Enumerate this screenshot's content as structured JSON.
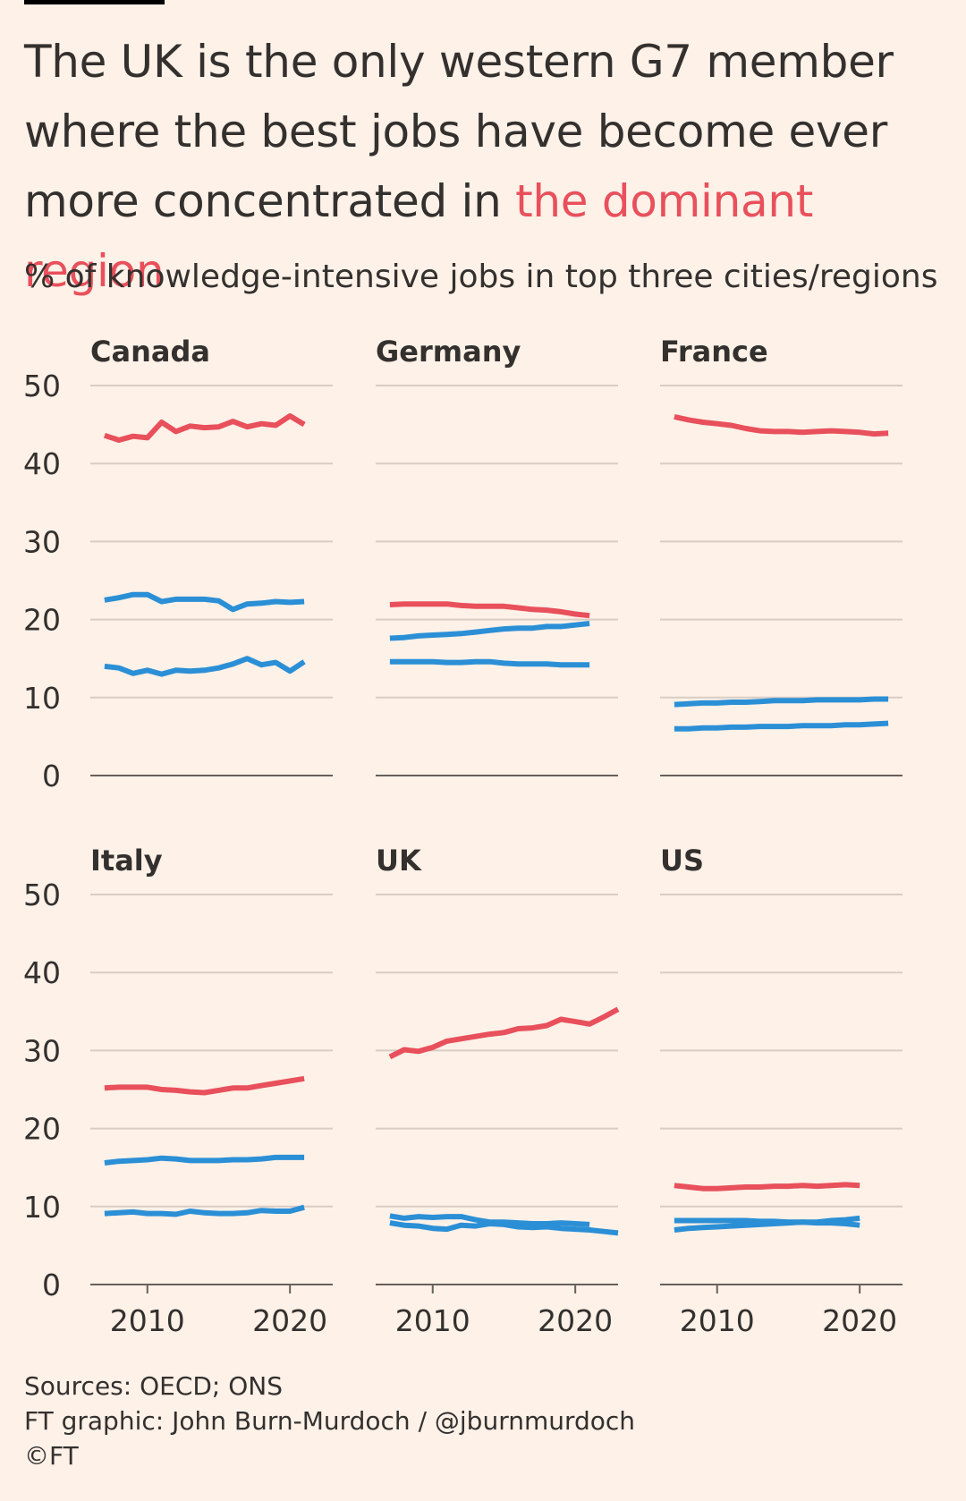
{
  "title": {
    "part1": "The UK is the only western G7 member where the best jobs have become ever more concentrated in ",
    "highlight": "the dominant region"
  },
  "subtitle": "% of knowledge-intensive jobs in top three cities/regions",
  "footer": {
    "sources": "Sources: OECD; ONS",
    "credit": "FT graphic: John Burn-Murdoch / @jburnmurdoch",
    "copyright": "©FT"
  },
  "colors": {
    "dominant": "#e8505b",
    "other": "#2b8fd6",
    "grid": "#d9ccc3",
    "axis": "#66605c"
  },
  "chart_data": [
    {
      "type": "line",
      "title": "Canada",
      "ylim": [
        0,
        50
      ],
      "xlim": [
        2006,
        2023
      ],
      "yticks": [
        "0",
        "10",
        "20",
        "30",
        "40",
        "50"
      ],
      "xticks": [
        "2010",
        "2020"
      ],
      "series": [
        {
          "role": "dominant",
          "x": [
            2007,
            2008,
            2009,
            2010,
            2011,
            2012,
            2013,
            2014,
            2015,
            2016,
            2017,
            2018,
            2019,
            2020,
            2021
          ],
          "y": [
            43.6,
            43.0,
            43.5,
            43.3,
            45.3,
            44.1,
            44.8,
            44.6,
            44.7,
            45.4,
            44.7,
            45.1,
            44.9,
            46.1,
            45.0
          ]
        },
        {
          "role": "other",
          "x": [
            2007,
            2008,
            2009,
            2010,
            2011,
            2012,
            2013,
            2014,
            2015,
            2016,
            2017,
            2018,
            2019,
            2020,
            2021
          ],
          "y": [
            22.5,
            22.8,
            23.2,
            23.2,
            22.3,
            22.6,
            22.6,
            22.6,
            22.4,
            21.3,
            22.0,
            22.1,
            22.3,
            22.2,
            22.3
          ]
        },
        {
          "role": "other",
          "x": [
            2007,
            2008,
            2009,
            2010,
            2011,
            2012,
            2013,
            2014,
            2015,
            2016,
            2017,
            2018,
            2019,
            2020,
            2021
          ],
          "y": [
            14.0,
            13.8,
            13.1,
            13.5,
            13.0,
            13.5,
            13.4,
            13.5,
            13.8,
            14.3,
            15.0,
            14.2,
            14.5,
            13.4,
            14.6
          ]
        }
      ]
    },
    {
      "type": "line",
      "title": "Germany",
      "ylim": [
        0,
        50
      ],
      "xlim": [
        2006,
        2023
      ],
      "yticks": [
        "0",
        "10",
        "20",
        "30",
        "40",
        "50"
      ],
      "xticks": [
        "2010",
        "2020"
      ],
      "series": [
        {
          "role": "dominant",
          "x": [
            2007,
            2008,
            2009,
            2010,
            2011,
            2012,
            2013,
            2014,
            2015,
            2016,
            2017,
            2018,
            2019,
            2020,
            2021
          ],
          "y": [
            21.9,
            22.0,
            22.0,
            22.0,
            22.0,
            21.8,
            21.7,
            21.7,
            21.7,
            21.5,
            21.3,
            21.2,
            21.0,
            20.7,
            20.5
          ]
        },
        {
          "role": "other",
          "x": [
            2007,
            2008,
            2009,
            2010,
            2011,
            2012,
            2013,
            2014,
            2015,
            2016,
            2017,
            2018,
            2019,
            2020,
            2021
          ],
          "y": [
            17.6,
            17.7,
            17.9,
            18.0,
            18.1,
            18.2,
            18.4,
            18.6,
            18.8,
            18.9,
            18.9,
            19.1,
            19.1,
            19.3,
            19.5
          ]
        },
        {
          "role": "other",
          "x": [
            2007,
            2008,
            2009,
            2010,
            2011,
            2012,
            2013,
            2014,
            2015,
            2016,
            2017,
            2018,
            2019,
            2020,
            2021
          ],
          "y": [
            14.6,
            14.6,
            14.6,
            14.6,
            14.5,
            14.5,
            14.6,
            14.6,
            14.4,
            14.3,
            14.3,
            14.3,
            14.2,
            14.2,
            14.2
          ]
        }
      ]
    },
    {
      "type": "line",
      "title": "France",
      "ylim": [
        0,
        50
      ],
      "xlim": [
        2006,
        2023
      ],
      "yticks": [
        "0",
        "10",
        "20",
        "30",
        "40",
        "50"
      ],
      "xticks": [
        "2010",
        "2020"
      ],
      "series": [
        {
          "role": "dominant",
          "x": [
            2007,
            2008,
            2009,
            2010,
            2011,
            2012,
            2013,
            2014,
            2015,
            2016,
            2017,
            2018,
            2019,
            2020,
            2021,
            2022
          ],
          "y": [
            46.0,
            45.6,
            45.3,
            45.1,
            44.9,
            44.5,
            44.2,
            44.1,
            44.1,
            44.0,
            44.1,
            44.2,
            44.1,
            44.0,
            43.8,
            43.9
          ]
        },
        {
          "role": "other",
          "x": [
            2007,
            2008,
            2009,
            2010,
            2011,
            2012,
            2013,
            2014,
            2015,
            2016,
            2017,
            2018,
            2019,
            2020,
            2021,
            2022
          ],
          "y": [
            9.1,
            9.2,
            9.3,
            9.3,
            9.4,
            9.4,
            9.5,
            9.6,
            9.6,
            9.6,
            9.7,
            9.7,
            9.7,
            9.7,
            9.8,
            9.8
          ]
        },
        {
          "role": "other",
          "x": [
            2007,
            2008,
            2009,
            2010,
            2011,
            2012,
            2013,
            2014,
            2015,
            2016,
            2017,
            2018,
            2019,
            2020,
            2021,
            2022
          ],
          "y": [
            6.0,
            6.0,
            6.1,
            6.1,
            6.2,
            6.2,
            6.3,
            6.3,
            6.3,
            6.4,
            6.4,
            6.4,
            6.5,
            6.5,
            6.6,
            6.7
          ]
        }
      ]
    },
    {
      "type": "line",
      "title": "Italy",
      "ylim": [
        0,
        50
      ],
      "xlim": [
        2006,
        2023
      ],
      "yticks": [
        "0",
        "10",
        "20",
        "30",
        "40",
        "50"
      ],
      "xticks": [
        "2010",
        "2020"
      ],
      "series": [
        {
          "role": "dominant",
          "x": [
            2007,
            2008,
            2009,
            2010,
            2011,
            2012,
            2013,
            2014,
            2015,
            2016,
            2017,
            2018,
            2019,
            2020,
            2021
          ],
          "y": [
            25.2,
            25.3,
            25.3,
            25.3,
            25.0,
            24.9,
            24.7,
            24.6,
            24.9,
            25.2,
            25.2,
            25.5,
            25.8,
            26.1,
            26.4
          ]
        },
        {
          "role": "other",
          "x": [
            2007,
            2008,
            2009,
            2010,
            2011,
            2012,
            2013,
            2014,
            2015,
            2016,
            2017,
            2018,
            2019,
            2020,
            2021
          ],
          "y": [
            15.6,
            15.8,
            15.9,
            16.0,
            16.2,
            16.1,
            15.9,
            15.9,
            15.9,
            16.0,
            16.0,
            16.1,
            16.3,
            16.3,
            16.3
          ]
        },
        {
          "role": "other",
          "x": [
            2007,
            2008,
            2009,
            2010,
            2011,
            2012,
            2013,
            2014,
            2015,
            2016,
            2017,
            2018,
            2019,
            2020,
            2021
          ],
          "y": [
            9.1,
            9.2,
            9.3,
            9.1,
            9.1,
            9.0,
            9.4,
            9.2,
            9.1,
            9.1,
            9.2,
            9.5,
            9.4,
            9.4,
            9.9
          ]
        }
      ]
    },
    {
      "type": "line",
      "title": "UK",
      "ylim": [
        0,
        50
      ],
      "xlim": [
        2006,
        2023
      ],
      "yticks": [
        "0",
        "10",
        "20",
        "30",
        "40",
        "50"
      ],
      "xticks": [
        "2010",
        "2020"
      ],
      "series": [
        {
          "role": "dominant",
          "x": [
            2007,
            2008,
            2009,
            2010,
            2011,
            2012,
            2013,
            2014,
            2015,
            2016,
            2017,
            2018,
            2019,
            2020,
            2021,
            2022,
            2023
          ],
          "y": [
            29.2,
            30.1,
            29.9,
            30.4,
            31.2,
            31.5,
            31.8,
            32.1,
            32.3,
            32.8,
            32.9,
            33.2,
            34.0,
            33.7,
            33.4,
            34.3,
            35.3
          ]
        },
        {
          "role": "other",
          "x": [
            2007,
            2008,
            2009,
            2010,
            2011,
            2012,
            2013,
            2014,
            2015,
            2016,
            2017,
            2018,
            2019,
            2020,
            2021
          ],
          "y": [
            8.8,
            8.5,
            8.7,
            8.6,
            8.7,
            8.7,
            8.3,
            8.0,
            8.0,
            7.9,
            7.8,
            7.8,
            7.9,
            7.8,
            7.7
          ]
        },
        {
          "role": "other",
          "x": [
            2007,
            2008,
            2009,
            2010,
            2011,
            2012,
            2013,
            2014,
            2015,
            2016,
            2017,
            2018,
            2019,
            2020,
            2021,
            2022,
            2023
          ],
          "y": [
            7.9,
            7.6,
            7.5,
            7.2,
            7.1,
            7.6,
            7.5,
            7.8,
            7.7,
            7.4,
            7.3,
            7.4,
            7.2,
            7.1,
            7.0,
            6.8,
            6.6
          ]
        }
      ]
    },
    {
      "type": "line",
      "title": "US",
      "ylim": [
        0,
        50
      ],
      "xlim": [
        2006,
        2023
      ],
      "yticks": [
        "0",
        "10",
        "20",
        "30",
        "40",
        "50"
      ],
      "xticks": [
        "2010",
        "2020"
      ],
      "series": [
        {
          "role": "dominant",
          "x": [
            2007,
            2008,
            2009,
            2010,
            2011,
            2012,
            2013,
            2014,
            2015,
            2016,
            2017,
            2018,
            2019,
            2020
          ],
          "y": [
            12.7,
            12.5,
            12.3,
            12.3,
            12.4,
            12.5,
            12.5,
            12.6,
            12.6,
            12.7,
            12.6,
            12.7,
            12.8,
            12.7
          ]
        },
        {
          "role": "other",
          "x": [
            2007,
            2008,
            2009,
            2010,
            2011,
            2012,
            2013,
            2014,
            2015,
            2016,
            2017,
            2018,
            2019,
            2020
          ],
          "y": [
            8.2,
            8.2,
            8.2,
            8.2,
            8.2,
            8.2,
            8.1,
            8.1,
            8.0,
            8.0,
            7.9,
            7.9,
            7.8,
            7.6
          ]
        },
        {
          "role": "other",
          "x": [
            2007,
            2008,
            2009,
            2010,
            2011,
            2012,
            2013,
            2014,
            2015,
            2016,
            2017,
            2018,
            2019,
            2020
          ],
          "y": [
            7.0,
            7.2,
            7.3,
            7.4,
            7.5,
            7.6,
            7.7,
            7.8,
            7.9,
            8.0,
            8.0,
            8.2,
            8.3,
            8.5
          ]
        }
      ]
    }
  ]
}
